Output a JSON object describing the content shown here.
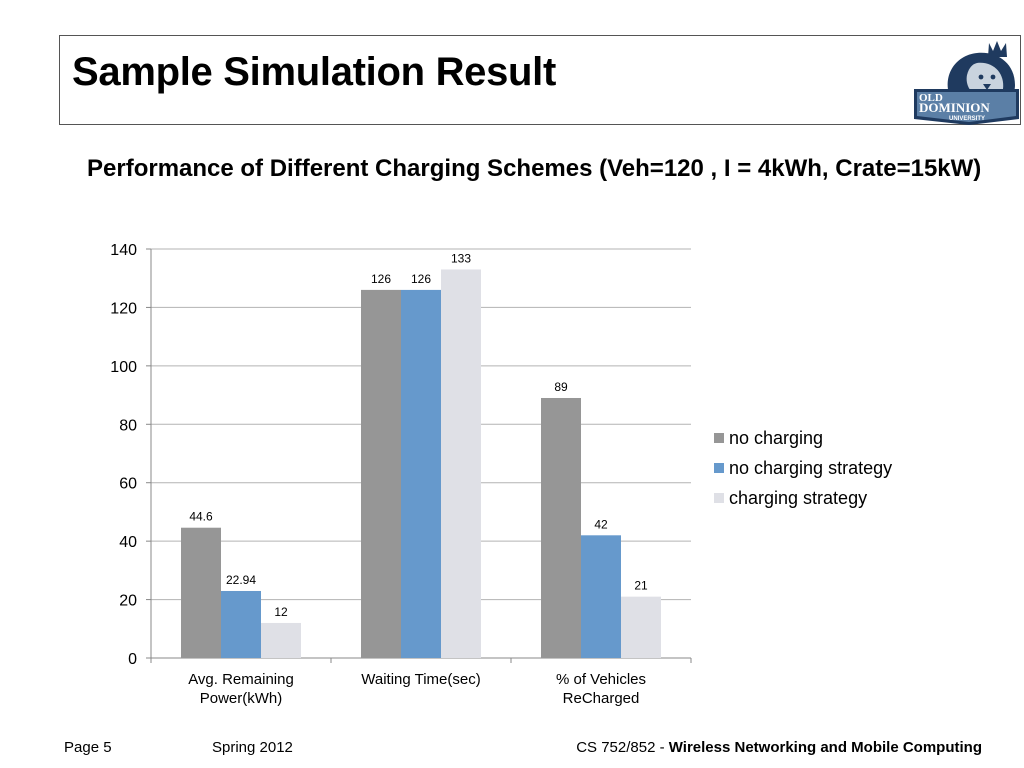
{
  "slide": {
    "title": "Sample Simulation Result",
    "subtitle": "Performance of Different Charging Schemes (Veh=120 , I = 4kWh, Crate=15kW)"
  },
  "logo": {
    "line1": "OLD",
    "line2": "DOMINION",
    "line3": "UNIVERSITY",
    "colors": {
      "navy": "#1f3a5f",
      "silver": "#c9d3de",
      "blue": "#5b7fa6"
    }
  },
  "chart_data": {
    "type": "bar",
    "categories": [
      [
        "Avg. Remaining",
        "Power(kWh)"
      ],
      [
        "Waiting Time(sec)"
      ],
      [
        "% of Vehicles",
        "ReCharged"
      ]
    ],
    "series": [
      {
        "name": "no charging",
        "values": [
          44.6,
          126,
          89
        ],
        "labels": [
          "44.6",
          "126",
          "89"
        ],
        "color": "#969696"
      },
      {
        "name": "no charging strategy",
        "values": [
          22.94,
          126,
          42
        ],
        "labels": [
          "22.94",
          "126",
          "42"
        ],
        "color": "#6699cc"
      },
      {
        "name": "charging strategy",
        "values": [
          12,
          133,
          21
        ],
        "labels": [
          "12",
          "133",
          "21"
        ],
        "color": "#dfe0e6"
      }
    ],
    "ylim": [
      0,
      140
    ],
    "yticks": [
      0,
      20,
      40,
      60,
      80,
      100,
      120,
      140
    ],
    "grid": true,
    "legend": "right",
    "gridColor": "#b3b3b3"
  },
  "footer": {
    "page": "Page 5",
    "term": "Spring 2012",
    "course_prefix": "CS 752/852 - ",
    "course_name": "Wireless Networking and Mobile Computing"
  }
}
